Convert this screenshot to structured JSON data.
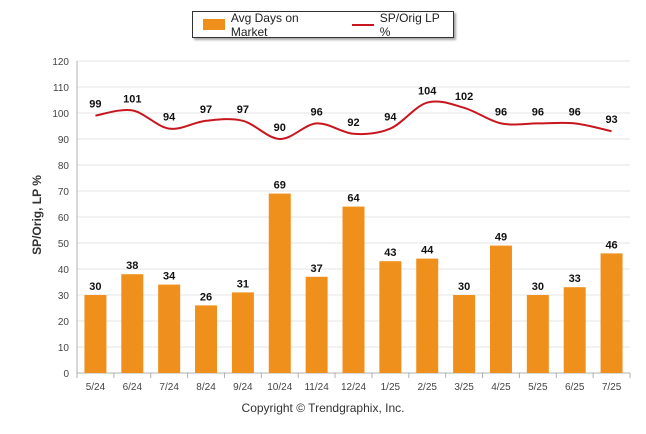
{
  "legend": {
    "bar_label": "Avg Days on Market",
    "line_label": "SP/Orig LP %"
  },
  "copyright": "Copyright © Trendgraphix, Inc.",
  "colors": {
    "bar": "#F0901C",
    "line": "#C8161E",
    "grid": "#E6E6E6",
    "axis": "#B0B0B0"
  },
  "chart_data": {
    "type": "bar",
    "categories": [
      "5/24",
      "6/24",
      "7/24",
      "8/24",
      "9/24",
      "10/24",
      "11/24",
      "12/24",
      "1/25",
      "2/25",
      "3/25",
      "4/25",
      "5/25",
      "6/25",
      "7/25"
    ],
    "ylabel": "SP/Orig, LP %",
    "ylim": [
      0,
      120
    ],
    "yticks": [
      0,
      10,
      20,
      30,
      40,
      50,
      60,
      70,
      80,
      90,
      100,
      110,
      120
    ],
    "grid": true,
    "legend_position": "top-center",
    "series": [
      {
        "name": "Avg Days on Market",
        "type": "bar",
        "values": [
          30,
          38,
          34,
          26,
          31,
          69,
          37,
          64,
          43,
          44,
          30,
          49,
          30,
          33,
          46
        ]
      },
      {
        "name": "SP/Orig LP %",
        "type": "line",
        "values": [
          99,
          101,
          94,
          97,
          97,
          90,
          96,
          92,
          94,
          104,
          102,
          96,
          96,
          96,
          93
        ]
      }
    ]
  }
}
